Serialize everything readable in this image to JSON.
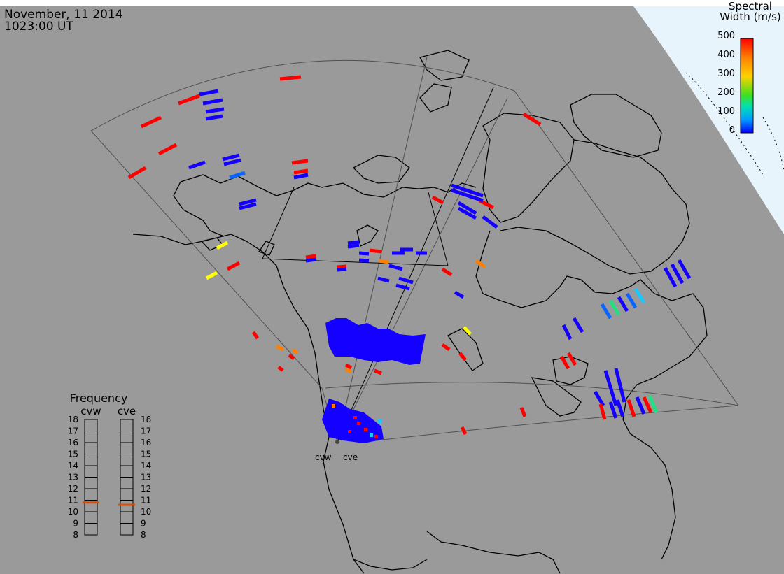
{
  "header": {
    "date": "November, 11 2014",
    "time": "1023:00 UT"
  },
  "colorbar": {
    "title_line1": "Spectral",
    "title_line2": "Width (m/s)",
    "ticks": [
      "500",
      "400",
      "300",
      "200",
      "100",
      "0"
    ]
  },
  "frequency_panel": {
    "title": "Frequency",
    "radars": [
      "cvw",
      "cve"
    ],
    "scale": [
      "18",
      "17",
      "16",
      "15",
      "14",
      "13",
      "12",
      "11",
      "10",
      "9",
      "8"
    ],
    "cvw_mhz": 10.8,
    "cve_mhz": 10.6
  },
  "site_labels": [
    "cvw",
    "cve"
  ],
  "colors": {
    "ocean": "#9a9a9a",
    "polar_region": "#e8f4fc",
    "marker": "#e04a00"
  }
}
